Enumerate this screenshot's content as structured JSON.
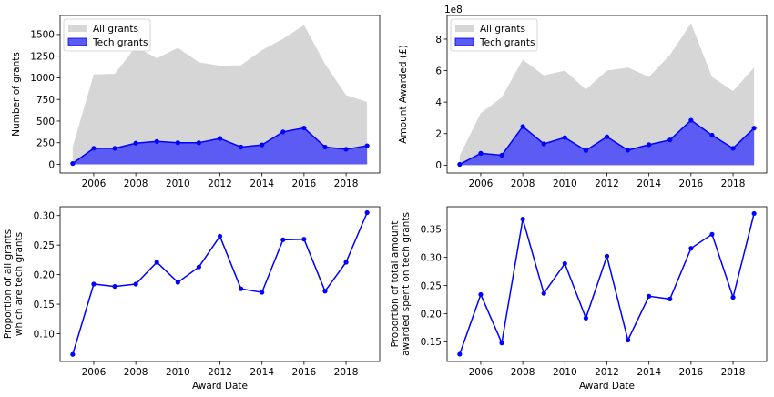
{
  "chart_data": [
    {
      "id": "count",
      "type": "area",
      "ylabel": "Number of grants",
      "xlabel": "",
      "ylim": [
        -100,
        1720
      ],
      "xlim": [
        2004.4,
        2019.6
      ],
      "y_ticks": [
        0,
        250,
        500,
        750,
        1000,
        1250,
        1500
      ],
      "y_tick_labels": [
        "0",
        "250",
        "500",
        "750",
        "1000",
        "1250",
        "1500"
      ],
      "x_ticks": [
        2006,
        2008,
        2010,
        2012,
        2014,
        2016,
        2018
      ],
      "x_tick_labels": [
        "2006",
        "2008",
        "2010",
        "2012",
        "2014",
        "2016",
        "2018"
      ],
      "multiplier": "",
      "legend": "top-left",
      "x": [
        2005,
        2006,
        2007,
        2008,
        2009,
        2010,
        2011,
        2012,
        2013,
        2014,
        2015,
        2016,
        2017,
        2018,
        2019
      ],
      "series": [
        {
          "name": "All grants",
          "color": "#d6d6d6",
          "values": [
            200,
            1040,
            1045,
            1360,
            1225,
            1345,
            1180,
            1140,
            1145,
            1320,
            1450,
            1610,
            1160,
            800,
            720
          ]
        },
        {
          "name": "Tech grants",
          "color": "#5c5cf5",
          "line_color": "#0000ff",
          "values": [
            10,
            185,
            185,
            245,
            265,
            250,
            250,
            300,
            200,
            225,
            375,
            420,
            200,
            175,
            215
          ]
        }
      ]
    },
    {
      "id": "amount",
      "type": "area",
      "ylabel": "Amount Awarded (£)",
      "xlabel": "",
      "ylim": [
        -5,
        95
      ],
      "xlim": [
        2004.4,
        2019.6
      ],
      "y_ticks": [
        0,
        20,
        40,
        60,
        80
      ],
      "y_tick_labels": [
        "0",
        "2",
        "4",
        "6",
        "8"
      ],
      "x_ticks": [
        2006,
        2008,
        2010,
        2012,
        2014,
        2016,
        2018
      ],
      "x_tick_labels": [
        "2006",
        "2008",
        "2010",
        "2012",
        "2014",
        "2016",
        "2018"
      ],
      "multiplier": "1e8",
      "legend": "top-left",
      "x": [
        2005,
        2006,
        2007,
        2008,
        2009,
        2010,
        2011,
        2012,
        2013,
        2014,
        2015,
        2016,
        2017,
        2018,
        2019
      ],
      "series": [
        {
          "name": "All grants",
          "color": "#d6d6d6",
          "values": [
            6,
            33,
            43,
            67,
            57,
            60,
            48,
            60,
            62,
            56,
            70,
            90,
            56,
            47,
            62
          ]
        },
        {
          "name": "Tech grants",
          "color": "#5c5cf5",
          "line_color": "#0000ff",
          "values": [
            0.5,
            7.5,
            6.3,
            24.5,
            13.5,
            17.5,
            9.3,
            18,
            9.5,
            13,
            16,
            28.5,
            19,
            10.7,
            23.5
          ]
        }
      ]
    },
    {
      "id": "prop_count",
      "type": "line",
      "ylabel": "Proportion of all grants\nwhich are tech grants",
      "xlabel": "Award Date",
      "ylim": [
        0.053,
        0.315
      ],
      "xlim": [
        2004.4,
        2019.6
      ],
      "y_ticks": [
        0.1,
        0.15,
        0.2,
        0.25,
        0.3
      ],
      "y_tick_labels": [
        "0.10",
        "0.15",
        "0.20",
        "0.25",
        "0.30"
      ],
      "x_ticks": [
        2006,
        2008,
        2010,
        2012,
        2014,
        2016,
        2018
      ],
      "x_tick_labels": [
        "2006",
        "2008",
        "2010",
        "2012",
        "2014",
        "2016",
        "2018"
      ],
      "multiplier": "",
      "x": [
        2005,
        2006,
        2007,
        2008,
        2009,
        2010,
        2011,
        2012,
        2013,
        2014,
        2015,
        2016,
        2017,
        2018,
        2019
      ],
      "series": [
        {
          "name": "",
          "color": "#0000ff",
          "values": [
            0.065,
            0.184,
            0.18,
            0.184,
            0.221,
            0.187,
            0.213,
            0.265,
            0.176,
            0.17,
            0.259,
            0.26,
            0.172,
            0.221,
            0.305
          ]
        }
      ]
    },
    {
      "id": "prop_amount",
      "type": "line",
      "ylabel": "Proportion of total amount\nawarded spent on tech grants",
      "xlabel": "Award Date",
      "ylim": [
        0.115,
        0.39
      ],
      "xlim": [
        2004.4,
        2019.6
      ],
      "y_ticks": [
        0.15,
        0.2,
        0.25,
        0.3,
        0.35
      ],
      "y_tick_labels": [
        "0.15",
        "0.20",
        "0.25",
        "0.30",
        "0.35"
      ],
      "x_ticks": [
        2006,
        2008,
        2010,
        2012,
        2014,
        2016,
        2018
      ],
      "x_tick_labels": [
        "2006",
        "2008",
        "2010",
        "2012",
        "2014",
        "2016",
        "2018"
      ],
      "multiplier": "",
      "x": [
        2005,
        2006,
        2007,
        2008,
        2009,
        2010,
        2011,
        2012,
        2013,
        2014,
        2015,
        2016,
        2017,
        2018,
        2019
      ],
      "series": [
        {
          "name": "",
          "color": "#0000ff",
          "values": [
            0.128,
            0.234,
            0.148,
            0.368,
            0.236,
            0.289,
            0.192,
            0.302,
            0.153,
            0.231,
            0.226,
            0.316,
            0.341,
            0.229,
            0.378
          ]
        }
      ]
    }
  ]
}
